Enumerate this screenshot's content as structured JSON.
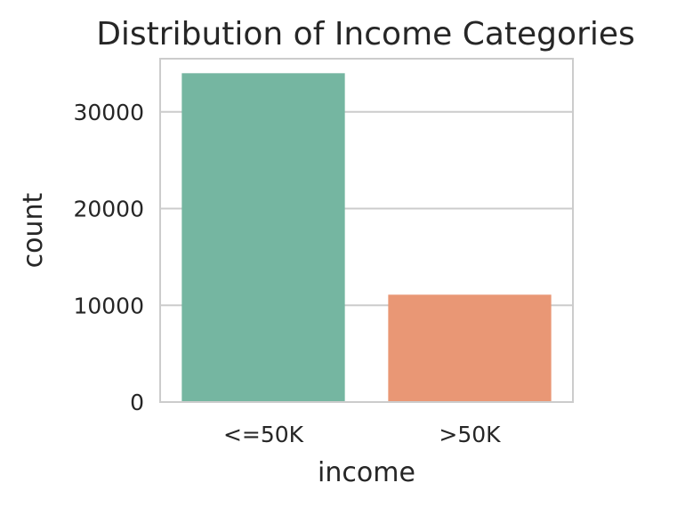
{
  "chart_data": {
    "type": "bar",
    "title": "Distribution of Income Categories",
    "xlabel": "income",
    "ylabel": "count",
    "categories": [
      "<=50K",
      ">50K"
    ],
    "values": [
      34000,
      11100
    ],
    "colors": [
      "#75b6a1",
      "#e99775"
    ],
    "ylim": [
      0,
      35500
    ],
    "yticks": [
      0,
      10000,
      20000,
      30000
    ],
    "ytick_labels": [
      "0",
      "10000",
      "20000",
      "30000"
    ],
    "grid": true,
    "legend": "none"
  }
}
